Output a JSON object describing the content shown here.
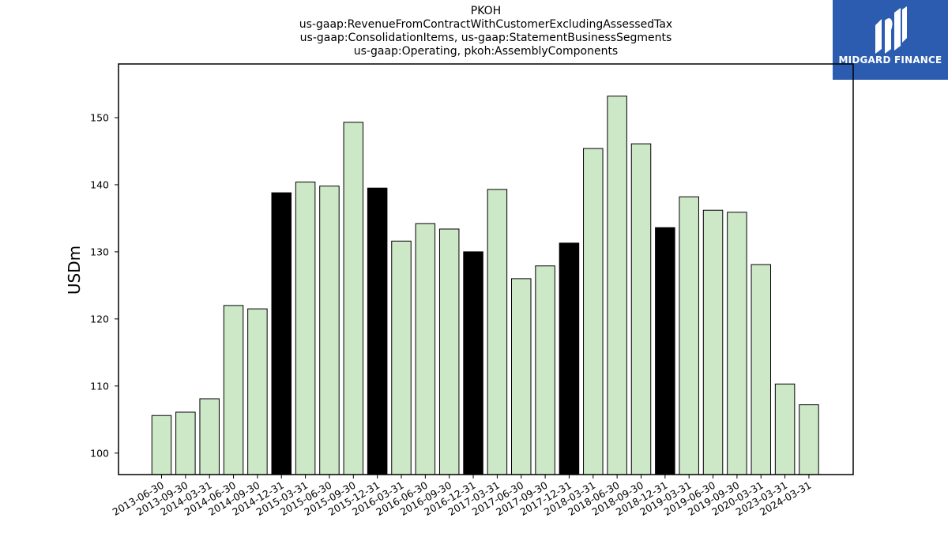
{
  "header": {
    "title_lines": [
      "PKOH",
      "us-gaap:RevenueFromContractWithCustomerExcludingAssessedTax",
      "us-gaap:ConsolidationItems, us-gaap:StatementBusinessSegments",
      "us-gaap:Operating, pkoh:AssemblyComponents"
    ]
  },
  "logo": {
    "text": "MIDGARD FINANCE",
    "icon": "midgard-finance-logo-icon",
    "background": "#2b5cb0"
  },
  "chart_data": {
    "type": "bar",
    "title": "PKOH\nus-gaap:RevenueFromContractWithCustomerExcludingAssessedTax\nus-gaap:ConsolidationItems, us-gaap:StatementBusinessSegments\nus-gaap:Operating, pkoh:AssemblyComponents",
    "xlabel": "",
    "ylabel": "USDm",
    "ylim": [
      96.8,
      158.0
    ],
    "yticks": [
      100,
      110,
      120,
      130,
      140,
      150
    ],
    "grid": false,
    "categories": [
      "2013-06-30",
      "2013-09-30",
      "2014-03-31",
      "2014-06-30",
      "2014-09-30",
      "2014-12-31",
      "2015-03-31",
      "2015-06-30",
      "2015-09-30",
      "2015-12-31",
      "2016-03-31",
      "2016-06-30",
      "2016-09-30",
      "2016-12-31",
      "2017-03-31",
      "2017-06-30",
      "2017-09-30",
      "2017-12-31",
      "2018-03-31",
      "2018-06-30",
      "2018-09-30",
      "2018-12-31",
      "2019-03-31",
      "2019-06-30",
      "2019-09-30",
      "2020-03-31",
      "2023-03-31",
      "2024-03-31"
    ],
    "values": [
      105.6,
      106.1,
      108.1,
      122.0,
      121.5,
      138.8,
      140.4,
      139.8,
      149.3,
      139.5,
      131.6,
      134.2,
      133.4,
      130.0,
      139.3,
      126.0,
      127.9,
      131.3,
      145.4,
      153.2,
      146.1,
      133.6,
      138.2,
      136.2,
      135.9,
      128.1,
      110.3,
      107.2
    ],
    "highlighted": [
      false,
      false,
      false,
      false,
      false,
      true,
      false,
      false,
      false,
      true,
      false,
      false,
      false,
      true,
      false,
      false,
      false,
      true,
      false,
      false,
      false,
      true,
      false,
      false,
      false,
      false,
      false,
      false
    ],
    "colors": {
      "normal": "#cde8c7",
      "highlight": "#000000",
      "edge": "#000000"
    }
  }
}
